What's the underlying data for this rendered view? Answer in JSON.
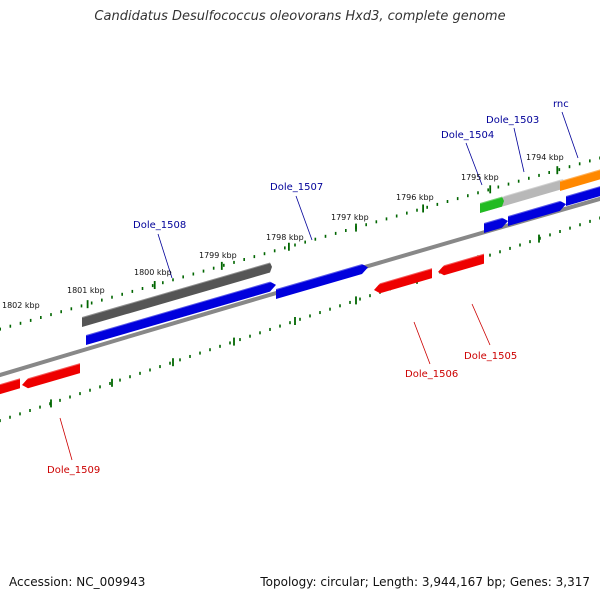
{
  "title": "Candidatus Desulfococcus oleovorans Hxd3, complete genome",
  "footer": {
    "accession": "Accession: NC_009943",
    "summary": "Topology: circular; Length: 3,944,167 bp; Genes: 3,317"
  },
  "colors": {
    "forward_cds": "#0000dd",
    "reverse_cds": "#ee0000",
    "gene_dark": "#555555",
    "gene_light": "#b8b8b8",
    "rna_green": "#22bb22",
    "rna_orange": "#ff8800",
    "backbone": "#888888",
    "ticks": "#006600",
    "label_forward": "#000099",
    "label_reverse": "#cc0000"
  },
  "ticks": [
    {
      "label": "1802 kbp",
      "kbp": 1802
    },
    {
      "label": "1801 kbp",
      "kbp": 1801
    },
    {
      "label": "1800 kbp",
      "kbp": 1800
    },
    {
      "label": "1799 kbp",
      "kbp": 1799
    },
    {
      "label": "1798 kbp",
      "kbp": 1798
    },
    {
      "label": "1797 kbp",
      "kbp": 1797
    },
    {
      "label": "1796 kbp",
      "kbp": 1796
    },
    {
      "label": "1795 kbp",
      "kbp": 1795
    },
    {
      "label": "1794 kbp",
      "kbp": 1794
    }
  ],
  "genes": [
    {
      "name": "Dole_1503",
      "strand": "forward"
    },
    {
      "name": "Dole_1504",
      "strand": "forward"
    },
    {
      "name": "Dole_1505",
      "strand": "reverse"
    },
    {
      "name": "Dole_1506",
      "strand": "reverse"
    },
    {
      "name": "Dole_1507",
      "strand": "forward"
    },
    {
      "name": "Dole_1508",
      "strand": "forward"
    },
    {
      "name": "Dole_1509",
      "strand": "reverse"
    },
    {
      "name": "rnc",
      "strand": "forward"
    }
  ]
}
